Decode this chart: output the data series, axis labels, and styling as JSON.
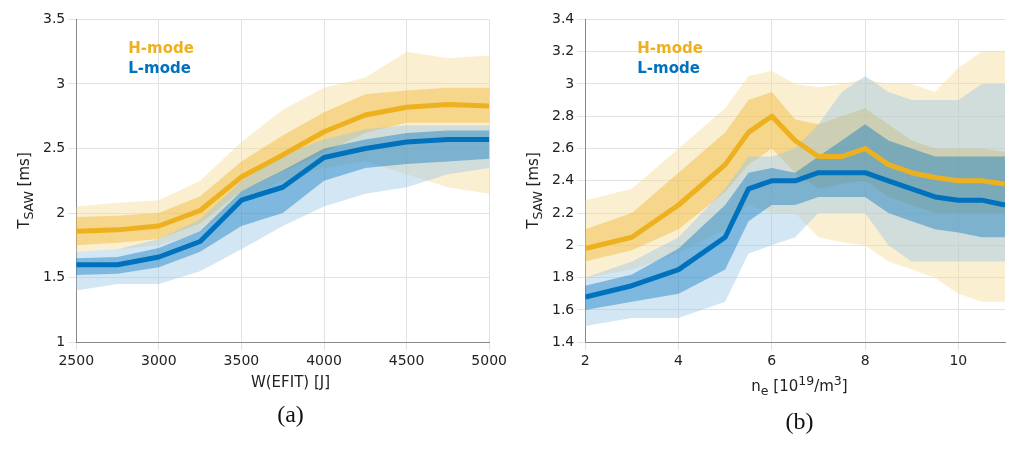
{
  "chart_data": [
    {
      "type": "line",
      "xlabel": "W(EFIT) [J]",
      "ylabel": "T$_{SAW}$ [ms]",
      "annotations": [
        "(a)"
      ],
      "xlim": [
        2500,
        5000
      ],
      "xticks": [
        2500,
        3000,
        3500,
        4000,
        4500,
        5000
      ],
      "ylim": [
        1,
        3.5
      ],
      "yticks": [
        1,
        1.5,
        2,
        2.5,
        3,
        3.5
      ],
      "grid": true,
      "legend": "top left",
      "x": [
        2500,
        2750,
        3000,
        3250,
        3500,
        3750,
        4000,
        4250,
        4500,
        4750,
        5000
      ],
      "series": [
        {
          "color": "#f6dc9a",
          "values": [
            null,
            null,
            null,
            null,
            null,
            null,
            null,
            null,
            null,
            null,
            null
          ],
          "lower": [
            1.7,
            1.72,
            1.75,
            1.85,
            2.1,
            2.25,
            2.35,
            2.4,
            2.3,
            2.2,
            2.15
          ],
          "upper": [
            2.05,
            2.08,
            2.1,
            2.25,
            2.55,
            2.8,
            2.97,
            3.05,
            3.25,
            3.2,
            3.22
          ]
        },
        {
          "name": "H-mode",
          "color": "#edb120",
          "values": [
            1.86,
            1.87,
            1.9,
            2.02,
            2.28,
            2.45,
            2.63,
            2.76,
            2.82,
            2.84,
            2.83
          ],
          "lower": [
            1.75,
            1.77,
            1.8,
            1.92,
            2.17,
            2.32,
            2.47,
            2.62,
            2.7,
            2.7,
            2.7
          ],
          "upper": [
            1.97,
            1.98,
            2,
            2.13,
            2.4,
            2.6,
            2.78,
            2.92,
            2.95,
            2.97,
            2.97
          ]
        },
        {
          "color": "#9cc8e6",
          "values": [
            null,
            null,
            null,
            null,
            null,
            null,
            null,
            null,
            null,
            null,
            null
          ],
          "lower": [
            1.4,
            1.45,
            1.45,
            1.55,
            1.72,
            1.9,
            2.05,
            2.15,
            2.2,
            2.3,
            2.35
          ],
          "upper": [
            1.7,
            1.72,
            1.8,
            1.95,
            2.25,
            2.45,
            2.57,
            2.65,
            2.68,
            2.68,
            2.68
          ]
        },
        {
          "name": "L-mode",
          "color": "#0072bd",
          "values": [
            1.6,
            1.6,
            1.66,
            1.78,
            2.1,
            2.2,
            2.43,
            2.5,
            2.55,
            2.57,
            2.57
          ],
          "lower": [
            1.52,
            1.53,
            1.58,
            1.7,
            1.9,
            2,
            2.25,
            2.35,
            2.38,
            2.4,
            2.42
          ],
          "upper": [
            1.65,
            1.66,
            1.73,
            1.86,
            2.17,
            2.33,
            2.5,
            2.57,
            2.62,
            2.64,
            2.64
          ]
        }
      ]
    },
    {
      "type": "line",
      "xlabel": "n$_{e}$ [10$^{19}$/m$^{3}$]",
      "ylabel": "T$_{SAW}$ [ms]",
      "annotations": [
        "(b)"
      ],
      "xlim": [
        2,
        11
      ],
      "xticks": [
        2,
        4,
        6,
        8,
        10
      ],
      "ylim": [
        1.4,
        3.4
      ],
      "yticks": [
        1.4,
        1.6,
        1.8,
        2,
        2.2,
        2.4,
        2.6,
        2.8,
        3,
        3.2,
        3.4
      ],
      "grid": true,
      "legend": "top left",
      "x": [
        2,
        3,
        4,
        5,
        5.5,
        6,
        6.5,
        7,
        7.5,
        8,
        8.5,
        9,
        9.5,
        10,
        10.5,
        11
      ],
      "series": [
        {
          "color": "#f6dc9a",
          "values": [
            null,
            null,
            null,
            null,
            null,
            null,
            null,
            null,
            null,
            null,
            null,
            null,
            null,
            null,
            null,
            null
          ],
          "lower": [
            1.8,
            1.85,
            1.95,
            2.1,
            2.25,
            2.2,
            2.2,
            2.05,
            2.02,
            2,
            1.9,
            1.85,
            1.8,
            1.7,
            1.65,
            1.65
          ],
          "upper": [
            2.28,
            2.35,
            2.6,
            2.85,
            3.05,
            3.08,
            3,
            2.98,
            3,
            3.03,
            3,
            3,
            2.95,
            3.1,
            3.2,
            3.2
          ]
        },
        {
          "name": "H-mode",
          "color": "#edb120",
          "values": [
            1.98,
            2.05,
            2.25,
            2.5,
            2.7,
            2.8,
            2.65,
            2.55,
            2.55,
            2.6,
            2.5,
            2.45,
            2.42,
            2.4,
            2.4,
            2.38
          ],
          "lower": [
            1.9,
            1.97,
            2.1,
            2.33,
            2.5,
            2.6,
            2.45,
            2.35,
            2.38,
            2.4,
            2.3,
            2.25,
            2.2,
            2.2,
            2.2,
            2.2
          ],
          "upper": [
            2.1,
            2.2,
            2.45,
            2.7,
            2.9,
            2.95,
            2.78,
            2.75,
            2.8,
            2.85,
            2.75,
            2.65,
            2.6,
            2.6,
            2.6,
            2.58
          ]
        },
        {
          "color": "#9cc8e6",
          "values": [
            null,
            null,
            null,
            null,
            null,
            null,
            null,
            null,
            null,
            null,
            null,
            null,
            null,
            null,
            null,
            null
          ],
          "lower": [
            1.5,
            1.55,
            1.55,
            1.65,
            1.95,
            2,
            2.05,
            2.2,
            2.2,
            2.2,
            2,
            1.9,
            1.9,
            1.9,
            1.9,
            1.9
          ],
          "upper": [
            1.8,
            1.9,
            2.05,
            2.35,
            2.55,
            2.55,
            2.6,
            2.75,
            2.95,
            3.05,
            2.95,
            2.9,
            2.9,
            2.9,
            3,
            3
          ]
        },
        {
          "name": "L-mode",
          "color": "#0072bd",
          "values": [
            1.68,
            1.75,
            1.85,
            2.05,
            2.35,
            2.4,
            2.4,
            2.45,
            2.45,
            2.45,
            2.4,
            2.35,
            2.3,
            2.28,
            2.28,
            2.25
          ],
          "lower": [
            1.6,
            1.65,
            1.7,
            1.85,
            2.15,
            2.25,
            2.25,
            2.3,
            2.3,
            2.3,
            2.2,
            2.15,
            2.1,
            2.08,
            2.05,
            2.05
          ],
          "upper": [
            1.75,
            1.82,
            1.98,
            2.25,
            2.45,
            2.48,
            2.45,
            2.55,
            2.65,
            2.75,
            2.65,
            2.6,
            2.55,
            2.55,
            2.55,
            2.55
          ]
        }
      ]
    }
  ]
}
